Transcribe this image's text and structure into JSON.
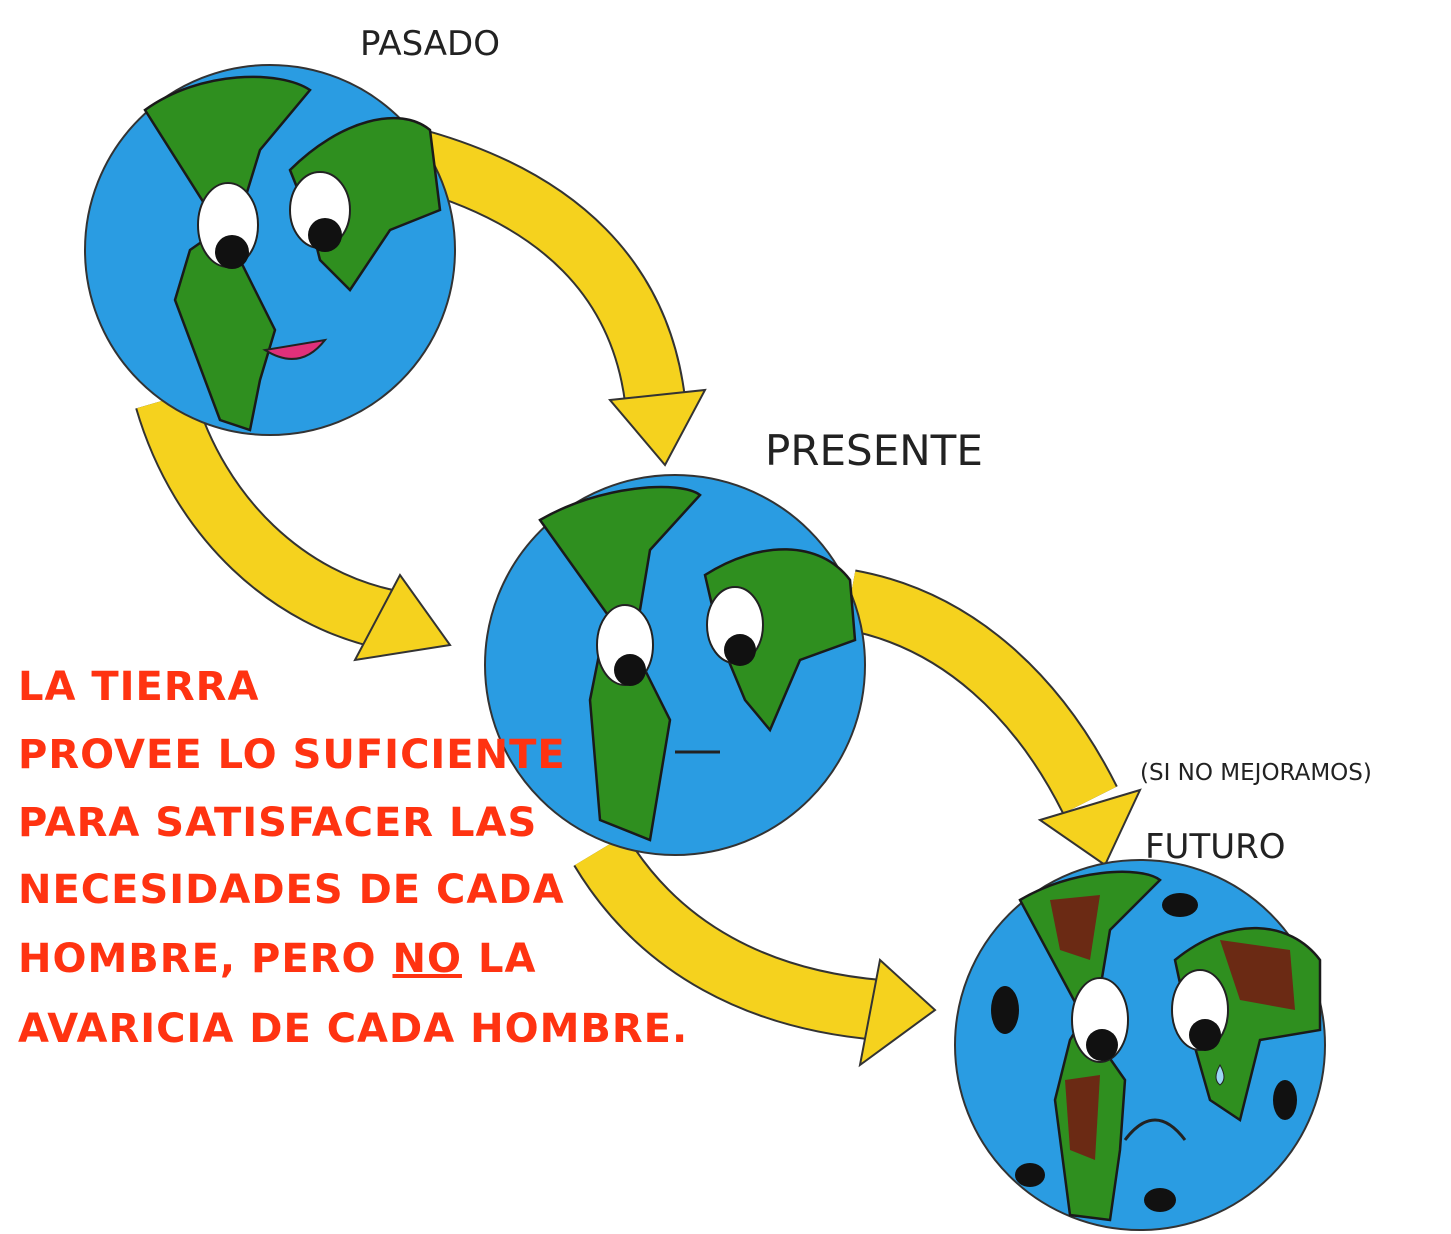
{
  "labels": {
    "past": "PASADO",
    "present": "PRESENTE",
    "condition": "(SI NO MEJORAMOS)",
    "future": "FUTURO"
  },
  "message": {
    "lines": [
      "LA TIERRA",
      "PROVEE LO SUFICIENTE",
      "PARA SATISFACER LAS",
      "NECESIDADES DE CADA",
      [
        "HOMBRE, PERO",
        "NO",
        "LA"
      ],
      "AVARICIA DE CADA HOMBRE."
    ]
  }
}
